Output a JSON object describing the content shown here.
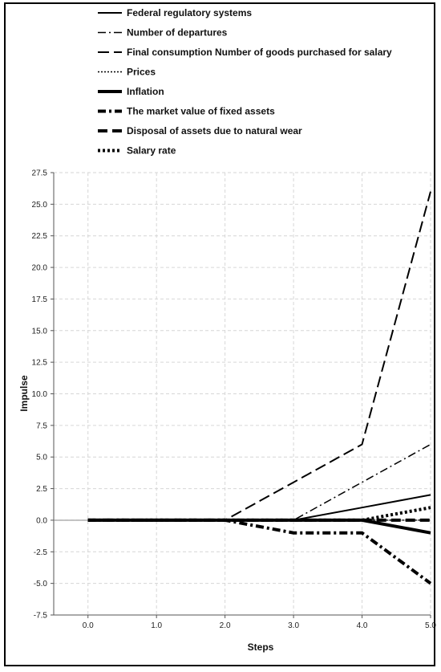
{
  "chart_data": {
    "type": "line",
    "xlabel": "Steps",
    "ylabel": "Impulse",
    "x": [
      0,
      1,
      2,
      3,
      4,
      5
    ],
    "x_tick_labels": [
      "0.0",
      "1.0",
      "2.0",
      "3.0",
      "4.0",
      "5.0"
    ],
    "xlim": [
      -0.5,
      5.0
    ],
    "ylim": [
      -7.5,
      27.5
    ],
    "y_ticks": [
      27.5,
      25.0,
      22.5,
      20.0,
      17.5,
      15.0,
      12.5,
      10.0,
      7.5,
      5.0,
      2.5,
      0.0,
      -2.5,
      -5.0,
      -7.5
    ],
    "y_tick_labels": [
      "27.5",
      "25.0",
      "22.5",
      "20.0",
      "17.5",
      "15.0",
      "12.5",
      "10.0",
      "7.5",
      "5.0",
      "2.5",
      "0.0",
      "-2.5",
      "-5.0",
      "-7.5"
    ],
    "grid": true,
    "legend_position": "top",
    "series": [
      {
        "name": "Federal regulatory systems",
        "style": "solid",
        "values": [
          0,
          0,
          0,
          0,
          1,
          2
        ]
      },
      {
        "name": "Number of departures",
        "style": "dashdot",
        "values": [
          0,
          0,
          0,
          0,
          3,
          6
        ]
      },
      {
        "name": "Final consumption Number of goods purchased for salary",
        "style": "dashed",
        "values": [
          0,
          0,
          0,
          3,
          6,
          26
        ]
      },
      {
        "name": "Prices",
        "style": "dotted",
        "values": [
          0,
          0,
          0,
          0,
          0,
          0
        ]
      },
      {
        "name": "Inflation",
        "style": "thick-solid",
        "values": [
          0,
          0,
          0,
          0,
          0,
          -1
        ]
      },
      {
        "name": "The market value of fixed assets",
        "style": "thick-dashdot",
        "values": [
          0,
          0,
          0,
          -1,
          -1,
          -5
        ]
      },
      {
        "name": "Disposal of  assets due to natural wear",
        "style": "thick-dashed",
        "values": [
          0,
          0,
          0,
          0,
          0,
          0
        ]
      },
      {
        "name": "Salary rate",
        "style": "thick-dotted",
        "values": [
          0,
          0,
          0,
          0,
          0,
          1
        ]
      }
    ]
  }
}
